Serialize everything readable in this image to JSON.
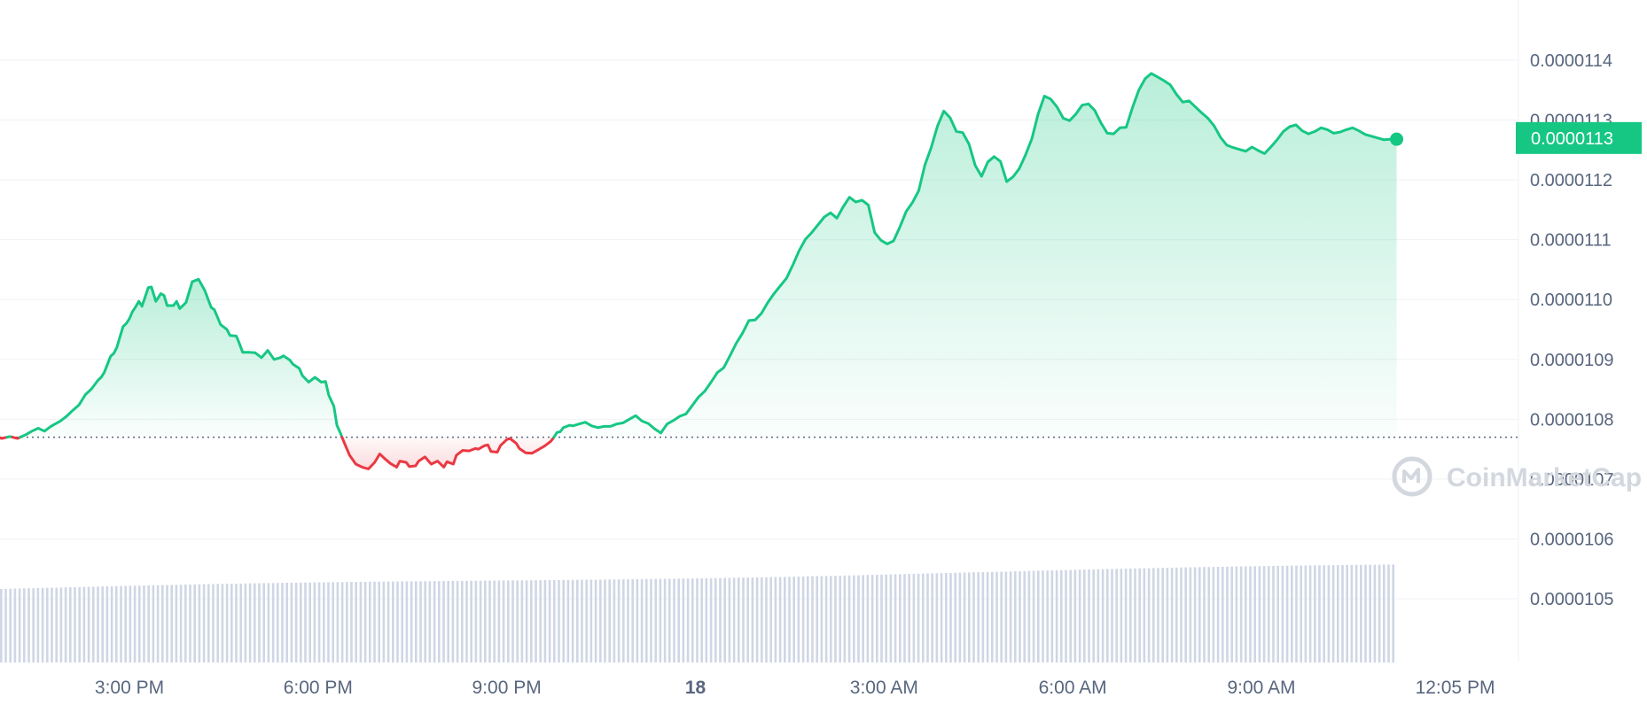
{
  "chart_data": {
    "type": "area",
    "y_ticks": [
      "0.0000105",
      "0.0000106",
      "0.0000107",
      "0.0000108",
      "0.0000109",
      "0.0000110",
      "0.0000111",
      "0.0000112",
      "0.0000113",
      "0.0000114"
    ],
    "y_tick_values": [
      1.05e-05,
      1.06e-05,
      1.07e-05,
      1.08e-05,
      1.09e-05,
      1.1e-05,
      1.11e-05,
      1.12e-05,
      1.13e-05,
      1.14e-05
    ],
    "ylim": [
      1.043e-05,
      1.15e-05
    ],
    "x_ticks": [
      {
        "label": "3:00 PM",
        "hour": 3,
        "bold": false
      },
      {
        "label": "6:00 PM",
        "hour": 6,
        "bold": false
      },
      {
        "label": "9:00 PM",
        "hour": 9,
        "bold": false
      },
      {
        "label": "18",
        "hour": 12,
        "bold": true
      },
      {
        "label": "3:00 AM",
        "hour": 15,
        "bold": false
      },
      {
        "label": "6:00 AM",
        "hour": 18,
        "bold": false
      },
      {
        "label": "9:00 AM",
        "hour": 21,
        "bold": false
      },
      {
        "label": "12:05 PM",
        "hour": 24.08,
        "bold": false
      }
    ],
    "xlim_hours": [
      -0.93,
      24.5
    ],
    "baseline": 1.077e-05,
    "current_price_label": "0.0000113",
    "current_price": 1.127e-05,
    "up_color": "#16c784",
    "down_color": "#ea3943",
    "volume_color": "#cfd6e4",
    "watermark": "CoinMarketCap",
    "series": [
      {
        "name": "price",
        "points": [
          [
            -0.93,
            1.0778
          ],
          [
            -0.6,
            1.0785
          ],
          [
            -0.4,
            1.0781
          ],
          [
            -0.2,
            1.0784
          ],
          [
            0,
            1.079
          ],
          [
            0.1,
            1.079
          ],
          [
            0.22,
            1.0781
          ],
          [
            0.35,
            1.0783
          ],
          [
            0.42,
            1.0773
          ],
          [
            0.5,
            1.0775
          ],
          [
            0.6,
            1.0771
          ],
          [
            0.72,
            1.0774
          ],
          [
            0.82,
            1.0772
          ],
          [
            0.97,
            1.0768
          ],
          [
            1.1,
            1.0771
          ],
          [
            1.22,
            1.0768
          ],
          [
            1.35,
            1.0774
          ],
          [
            1.45,
            1.078
          ],
          [
            1.55,
            1.0785
          ],
          [
            1.65,
            1.078
          ],
          [
            1.75,
            1.0788
          ],
          [
            1.9,
            1.0797
          ],
          [
            2.0,
            1.0805
          ],
          [
            2.1,
            1.0815
          ],
          [
            2.2,
            1.0824
          ],
          [
            2.3,
            1.0841
          ],
          [
            2.4,
            1.0851
          ],
          [
            2.5,
            1.0865
          ],
          [
            2.55,
            1.087
          ],
          [
            2.6,
            1.0878
          ],
          [
            2.7,
            1.0905
          ],
          [
            2.75,
            1.091
          ],
          [
            2.8,
            1.092
          ],
          [
            2.85,
            1.0938
          ],
          [
            2.9,
            1.0955
          ],
          [
            2.95,
            1.096
          ],
          [
            3.0,
            1.0968
          ],
          [
            3.05,
            1.098
          ],
          [
            3.1,
            1.0988
          ],
          [
            3.15,
            1.0997
          ],
          [
            3.2,
            1.0989
          ],
          [
            3.3,
            1.102
          ],
          [
            3.35,
            1.1021
          ],
          [
            3.42,
            1.0997
          ],
          [
            3.5,
            1.101
          ],
          [
            3.55,
            1.1007
          ],
          [
            3.6,
            1.099
          ],
          [
            3.7,
            1.099
          ],
          [
            3.75,
            1.0997
          ],
          [
            3.8,
            1.0985
          ],
          [
            3.9,
            1.0995
          ],
          [
            4.0,
            1.103
          ],
          [
            4.1,
            1.1034
          ],
          [
            4.2,
            1.1015
          ],
          [
            4.3,
            1.0987
          ],
          [
            4.35,
            1.0983
          ],
          [
            4.45,
            1.0958
          ],
          [
            4.55,
            1.095
          ],
          [
            4.6,
            1.094
          ],
          [
            4.7,
            1.0939
          ],
          [
            4.75,
            1.0926
          ],
          [
            4.8,
            1.0912
          ],
          [
            4.9,
            1.0912
          ],
          [
            5.0,
            1.0911
          ],
          [
            5.1,
            1.0903
          ],
          [
            5.2,
            1.0915
          ],
          [
            5.3,
            1.09
          ],
          [
            5.4,
            1.0903
          ],
          [
            5.45,
            1.0906
          ],
          [
            5.55,
            1.0899
          ],
          [
            5.6,
            1.0892
          ],
          [
            5.7,
            1.0885
          ],
          [
            5.75,
            1.0873
          ],
          [
            5.85,
            1.0862
          ],
          [
            5.95,
            1.087
          ],
          [
            6.05,
            1.0862
          ],
          [
            6.12,
            1.0863
          ],
          [
            6.17,
            1.084
          ],
          [
            6.25,
            1.0822
          ],
          [
            6.3,
            1.079
          ],
          [
            6.35,
            1.0778
          ],
          [
            6.4,
            1.0765
          ],
          [
            6.5,
            1.074
          ],
          [
            6.6,
            1.0725
          ],
          [
            6.7,
            1.072
          ],
          [
            6.8,
            1.0717
          ],
          [
            6.9,
            1.0728
          ],
          [
            6.98,
            1.0742
          ],
          [
            7.05,
            1.0735
          ],
          [
            7.15,
            1.0726
          ],
          [
            7.25,
            1.072
          ],
          [
            7.3,
            1.073
          ],
          [
            7.4,
            1.0728
          ],
          [
            7.45,
            1.0721
          ],
          [
            7.55,
            1.0722
          ],
          [
            7.6,
            1.073
          ],
          [
            7.7,
            1.0737
          ],
          [
            7.8,
            1.0725
          ],
          [
            7.9,
            1.073
          ],
          [
            8.0,
            1.072
          ],
          [
            8.05,
            1.0729
          ],
          [
            8.15,
            1.0725
          ],
          [
            8.2,
            1.074
          ],
          [
            8.3,
            1.0748
          ],
          [
            8.4,
            1.0747
          ],
          [
            8.5,
            1.0751
          ],
          [
            8.55,
            1.075
          ],
          [
            8.65,
            1.0756
          ],
          [
            8.7,
            1.0757
          ],
          [
            8.75,
            1.0746
          ],
          [
            8.85,
            1.0745
          ],
          [
            8.9,
            1.0756
          ],
          [
            9.0,
            1.0766
          ],
          [
            9.05,
            1.0768
          ],
          [
            9.15,
            1.076
          ],
          [
            9.2,
            1.0751
          ],
          [
            9.3,
            1.0744
          ],
          [
            9.4,
            1.0743
          ],
          [
            9.5,
            1.0749
          ],
          [
            9.6,
            1.0755
          ],
          [
            9.7,
            1.0763
          ],
          [
            9.75,
            1.077
          ],
          [
            9.8,
            1.0778
          ],
          [
            9.85,
            1.0779
          ],
          [
            9.9,
            1.0786
          ],
          [
            10.0,
            1.079
          ],
          [
            10.05,
            1.0789
          ],
          [
            10.15,
            1.0792
          ],
          [
            10.25,
            1.0795
          ],
          [
            10.35,
            1.0789
          ],
          [
            10.45,
            1.0786
          ],
          [
            10.55,
            1.0788
          ],
          [
            10.65,
            1.0788
          ],
          [
            10.75,
            1.0792
          ],
          [
            10.85,
            1.0794
          ],
          [
            10.95,
            1.08
          ],
          [
            11.05,
            1.0806
          ],
          [
            11.15,
            1.0797
          ],
          [
            11.25,
            1.0793
          ],
          [
            11.35,
            1.0784
          ],
          [
            11.45,
            1.0777
          ],
          [
            11.55,
            1.0792
          ],
          [
            11.65,
            1.0798
          ],
          [
            11.75,
            1.0805
          ],
          [
            11.85,
            1.0809
          ],
          [
            11.95,
            1.0823
          ],
          [
            12.05,
            1.0837
          ],
          [
            12.15,
            1.0847
          ],
          [
            12.25,
            1.0862
          ],
          [
            12.35,
            1.0878
          ],
          [
            12.45,
            1.0886
          ],
          [
            12.55,
            1.0906
          ],
          [
            12.65,
            1.0927
          ],
          [
            12.75,
            1.0944
          ],
          [
            12.85,
            1.0965
          ],
          [
            12.95,
            1.0966
          ],
          [
            13.05,
            1.0977
          ],
          [
            13.15,
            1.0995
          ],
          [
            13.25,
            1.101
          ],
          [
            13.35,
            1.1023
          ],
          [
            13.45,
            1.1036
          ],
          [
            13.55,
            1.1058
          ],
          [
            13.65,
            1.1082
          ],
          [
            13.75,
            1.1101
          ],
          [
            13.85,
            1.1112
          ],
          [
            13.95,
            1.1125
          ],
          [
            14.05,
            1.1138
          ],
          [
            14.15,
            1.1145
          ],
          [
            14.25,
            1.1136
          ],
          [
            14.35,
            1.1155
          ],
          [
            14.45,
            1.1171
          ],
          [
            14.55,
            1.1163
          ],
          [
            14.65,
            1.1166
          ],
          [
            14.75,
            1.1158
          ],
          [
            14.85,
            1.1112
          ],
          [
            14.95,
            1.1099
          ],
          [
            15.05,
            1.1093
          ],
          [
            15.15,
            1.1098
          ],
          [
            15.25,
            1.1121
          ],
          [
            15.35,
            1.1147
          ],
          [
            15.45,
            1.1162
          ],
          [
            15.55,
            1.1182
          ],
          [
            15.65,
            1.1225
          ],
          [
            15.75,
            1.1254
          ],
          [
            15.85,
            1.129
          ],
          [
            15.95,
            1.1315
          ],
          [
            16.05,
            1.1304
          ],
          [
            16.15,
            1.1281
          ],
          [
            16.25,
            1.1279
          ],
          [
            16.35,
            1.126
          ],
          [
            16.45,
            1.1224
          ],
          [
            16.55,
            1.1206
          ],
          [
            16.65,
            1.123
          ],
          [
            16.75,
            1.1239
          ],
          [
            16.85,
            1.1231
          ],
          [
            16.95,
            1.1197
          ],
          [
            17.05,
            1.1205
          ],
          [
            17.15,
            1.1219
          ],
          [
            17.25,
            1.1242
          ],
          [
            17.35,
            1.1269
          ],
          [
            17.45,
            1.131
          ],
          [
            17.55,
            1.134
          ],
          [
            17.65,
            1.1335
          ],
          [
            17.75,
            1.1322
          ],
          [
            17.85,
            1.1303
          ],
          [
            17.95,
            1.1299
          ],
          [
            18.05,
            1.131
          ],
          [
            18.15,
            1.1325
          ],
          [
            18.25,
            1.1327
          ],
          [
            18.35,
            1.1316
          ],
          [
            18.45,
            1.1295
          ],
          [
            18.55,
            1.1278
          ],
          [
            18.65,
            1.1277
          ],
          [
            18.75,
            1.1287
          ],
          [
            18.85,
            1.1288
          ],
          [
            18.95,
            1.1321
          ],
          [
            19.05,
            1.135
          ],
          [
            19.15,
            1.1369
          ],
          [
            19.25,
            1.1378
          ],
          [
            19.35,
            1.1372
          ],
          [
            19.45,
            1.1366
          ],
          [
            19.55,
            1.1359
          ],
          [
            19.65,
            1.1343
          ],
          [
            19.75,
            1.133
          ],
          [
            19.85,
            1.1332
          ],
          [
            19.95,
            1.1322
          ],
          [
            20.05,
            1.1312
          ],
          [
            20.15,
            1.1303
          ],
          [
            20.25,
            1.129
          ],
          [
            20.35,
            1.1271
          ],
          [
            20.45,
            1.1258
          ],
          [
            20.55,
            1.1254
          ],
          [
            20.65,
            1.1251
          ],
          [
            20.75,
            1.1248
          ],
          [
            20.85,
            1.1255
          ],
          [
            20.95,
            1.1249
          ],
          [
            21.05,
            1.1244
          ],
          [
            21.15,
            1.1255
          ],
          [
            21.25,
            1.1267
          ],
          [
            21.35,
            1.1281
          ],
          [
            21.45,
            1.1289
          ],
          [
            21.55,
            1.1292
          ],
          [
            21.65,
            1.1282
          ],
          [
            21.75,
            1.1277
          ],
          [
            21.85,
            1.1281
          ],
          [
            21.95,
            1.1287
          ],
          [
            22.05,
            1.1284
          ],
          [
            22.15,
            1.1278
          ],
          [
            22.25,
            1.128
          ],
          [
            22.35,
            1.1284
          ],
          [
            22.45,
            1.1287
          ],
          [
            22.55,
            1.1282
          ],
          [
            22.65,
            1.1276
          ],
          [
            22.75,
            1.1273
          ],
          [
            22.85,
            1.127
          ],
          [
            22.95,
            1.1267
          ],
          [
            23.05,
            1.1268
          ],
          [
            23.15,
            1.1268
          ]
        ]
      },
      {
        "name": "volume",
        "color": "#cfd6e4"
      }
    ]
  }
}
